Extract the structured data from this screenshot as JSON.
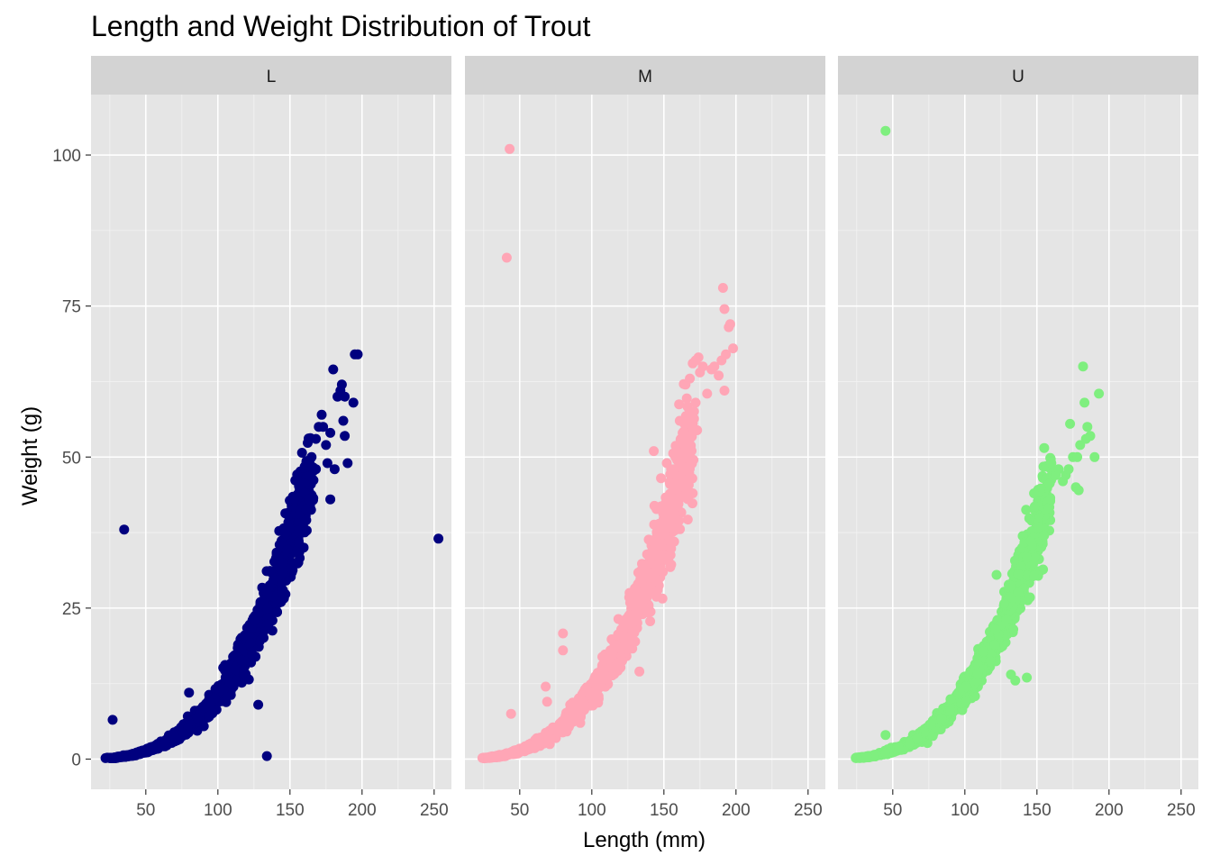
{
  "chart_data": {
    "type": "scatter",
    "title": "Length and Weight Distribution of Trout",
    "xlabel": "Length (mm)",
    "ylabel": "Weight (g)",
    "xlim": [
      12,
      262
    ],
    "ylim": [
      -5,
      110
    ],
    "x_ticks": [
      50,
      100,
      150,
      200,
      250
    ],
    "y_ticks": [
      0,
      25,
      50,
      75,
      100
    ],
    "grid": true,
    "legend": "none",
    "panel_background": "#e5e5e5",
    "strip_background": "#d3d3d3",
    "facets": [
      {
        "label": "L",
        "color": "#00007f",
        "curve": {
          "x_min": 25,
          "x_max": 165,
          "a": 1.05e-05,
          "b": 3.0
        },
        "points": [
          [
            27,
            6.5
          ],
          [
            35,
            38
          ],
          [
            80,
            11
          ],
          [
            128,
            9
          ],
          [
            134,
            0.5
          ],
          [
            253,
            36.5
          ],
          [
            153,
            43
          ],
          [
            157,
            45
          ],
          [
            160,
            44
          ],
          [
            165,
            50
          ],
          [
            163,
            43
          ],
          [
            168,
            48
          ],
          [
            170,
            55
          ],
          [
            172,
            57
          ],
          [
            168,
            53
          ],
          [
            175,
            52
          ],
          [
            173,
            55
          ],
          [
            178,
            54
          ],
          [
            176,
            49
          ],
          [
            178,
            43
          ],
          [
            181,
            48
          ],
          [
            180,
            64.5
          ],
          [
            183,
            60
          ],
          [
            185,
            61
          ],
          [
            188,
            60
          ],
          [
            186,
            62
          ],
          [
            190,
            49
          ],
          [
            194,
            59
          ],
          [
            195,
            67
          ],
          [
            197,
            67
          ],
          [
            187,
            56
          ],
          [
            188,
            53.5
          ]
        ]
      },
      {
        "label": "M",
        "color": "#ffa6b6",
        "curve": {
          "x_min": 25,
          "x_max": 170,
          "a": 1.1e-05,
          "b": 3.0
        },
        "points": [
          [
            43,
            101
          ],
          [
            41,
            83
          ],
          [
            44,
            7.5
          ],
          [
            68,
            12
          ],
          [
            69,
            9.5
          ],
          [
            80,
            20.8
          ],
          [
            85,
            9
          ],
          [
            80,
            18
          ],
          [
            92,
            6
          ],
          [
            133,
            14.5
          ],
          [
            143,
            51
          ],
          [
            148,
            46.5
          ],
          [
            152,
            49
          ],
          [
            155,
            48
          ],
          [
            158,
            50
          ],
          [
            161,
            56
          ],
          [
            163,
            54
          ],
          [
            164,
            52
          ],
          [
            168,
            53
          ],
          [
            170,
            55
          ],
          [
            172,
            59
          ],
          [
            165,
            62
          ],
          [
            168,
            63
          ],
          [
            170,
            65.5
          ],
          [
            172,
            66
          ],
          [
            174,
            66.5
          ],
          [
            175,
            64
          ],
          [
            177,
            65
          ],
          [
            180,
            60.5
          ],
          [
            183,
            64.5
          ],
          [
            185,
            65
          ],
          [
            188,
            63.5
          ],
          [
            190,
            66
          ],
          [
            192,
            61
          ],
          [
            191,
            78
          ],
          [
            192,
            74.5
          ],
          [
            195,
            71.5
          ],
          [
            196,
            72
          ],
          [
            198,
            68
          ],
          [
            193,
            67
          ],
          [
            170,
            44
          ]
        ]
      },
      {
        "label": "U",
        "color": "#7fef7f",
        "curve": {
          "x_min": 25,
          "x_max": 160,
          "a": 1.12e-05,
          "b": 3.0
        },
        "points": [
          [
            45,
            104
          ],
          [
            45,
            4
          ],
          [
            122,
            30.5
          ],
          [
            132,
            14
          ],
          [
            135,
            13
          ],
          [
            143,
            13.5
          ],
          [
            148,
            44
          ],
          [
            155,
            37
          ],
          [
            160,
            49
          ],
          [
            163,
            47
          ],
          [
            165,
            48
          ],
          [
            168,
            46
          ],
          [
            170,
            47
          ],
          [
            172,
            48
          ],
          [
            175,
            50
          ],
          [
            177,
            45
          ],
          [
            179,
            44.5
          ],
          [
            173,
            55.5
          ],
          [
            178,
            50
          ],
          [
            180,
            52
          ],
          [
            182,
            65
          ],
          [
            183,
            59
          ],
          [
            185,
            55
          ],
          [
            187,
            53.5
          ],
          [
            190,
            50
          ],
          [
            193,
            60.5
          ],
          [
            184,
            53
          ]
        ]
      }
    ]
  }
}
